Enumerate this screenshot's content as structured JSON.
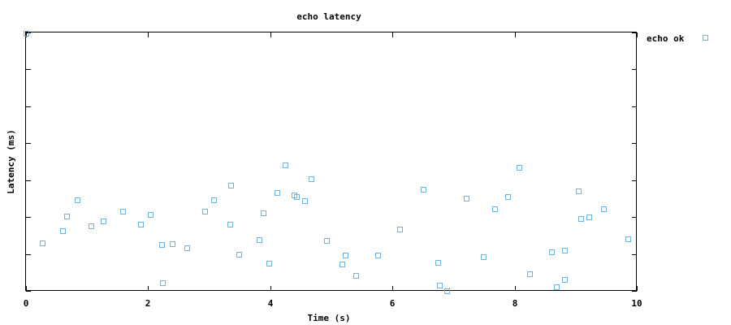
{
  "chart_data": {
    "type": "scatter",
    "title": "echo latency",
    "xlabel": "Time (s)",
    "ylabel": "Latency (ms)",
    "xlim": [
      0,
      10
    ],
    "ylim": [
      0,
      1
    ],
    "x_ticks": [
      "0",
      "2",
      "4",
      "6",
      "8",
      "10"
    ],
    "y_ticks_labeled": false,
    "y_tick_count": 8,
    "grid": false,
    "legend_position": "top-right",
    "colors": {
      "series": "#6fb2de",
      "axis": "#000000",
      "background": "#ffffff"
    },
    "series": [
      {
        "name": "echo ok",
        "points": [
          [
            0.0,
            0.996
          ],
          [
            0.27,
            0.186
          ],
          [
            0.6,
            0.232
          ],
          [
            0.66,
            0.289
          ],
          [
            0.84,
            0.351
          ],
          [
            1.07,
            0.253
          ],
          [
            1.26,
            0.269
          ],
          [
            1.58,
            0.309
          ],
          [
            1.88,
            0.259
          ],
          [
            2.04,
            0.295
          ],
          [
            2.22,
            0.179
          ],
          [
            2.23,
            0.031
          ],
          [
            2.39,
            0.183
          ],
          [
            2.63,
            0.166
          ],
          [
            2.92,
            0.309
          ],
          [
            3.07,
            0.351
          ],
          [
            3.34,
            0.259
          ],
          [
            3.35,
            0.408
          ],
          [
            3.49,
            0.141
          ],
          [
            3.81,
            0.198
          ],
          [
            3.88,
            0.303
          ],
          [
            3.98,
            0.107
          ],
          [
            4.11,
            0.379
          ],
          [
            4.24,
            0.486
          ],
          [
            4.39,
            0.371
          ],
          [
            4.43,
            0.364
          ],
          [
            4.56,
            0.348
          ],
          [
            4.67,
            0.433
          ],
          [
            4.92,
            0.194
          ],
          [
            5.17,
            0.104
          ],
          [
            5.22,
            0.138
          ],
          [
            5.4,
            0.061
          ],
          [
            5.76,
            0.138
          ],
          [
            6.12,
            0.24
          ],
          [
            6.5,
            0.392
          ],
          [
            6.74,
            0.11
          ],
          [
            6.77,
            0.022
          ],
          [
            6.89,
            0.0
          ],
          [
            7.21,
            0.357
          ],
          [
            7.49,
            0.132
          ],
          [
            7.67,
            0.317
          ],
          [
            7.88,
            0.364
          ],
          [
            8.07,
            0.477
          ],
          [
            8.25,
            0.066
          ],
          [
            8.6,
            0.151
          ],
          [
            8.69,
            0.016
          ],
          [
            8.81,
            0.157
          ],
          [
            8.82,
            0.044
          ],
          [
            9.04,
            0.386
          ],
          [
            9.08,
            0.279
          ],
          [
            9.21,
            0.286
          ],
          [
            9.45,
            0.318
          ],
          [
            9.86,
            0.2
          ]
        ]
      }
    ]
  }
}
